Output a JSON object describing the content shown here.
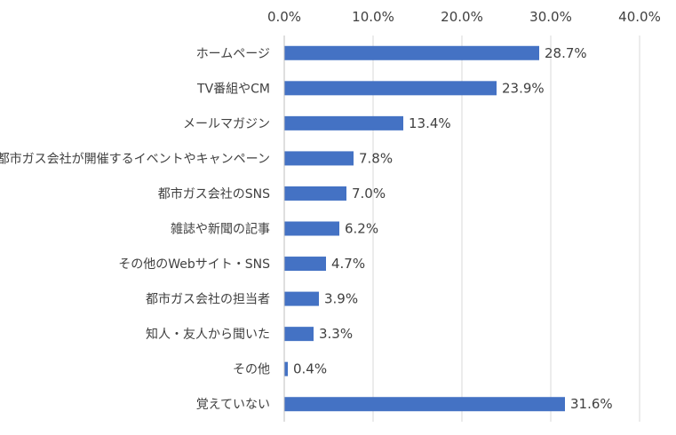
{
  "chart_data": {
    "type": "bar",
    "orientation": "horizontal",
    "categories": [
      "ホームページ",
      "TV番組やCM",
      "メールマガジン",
      "都市ガス会社が開催するイベントやキャンペーン",
      "都市ガス会社のSNS",
      "雑誌や新聞の記事",
      "その他のWebサイト・SNS",
      "都市ガス会社の担当者",
      "知人・友人から聞いた",
      "その他",
      "覚えていない"
    ],
    "values": [
      28.7,
      23.9,
      13.4,
      7.8,
      7.0,
      6.2,
      4.7,
      3.9,
      3.3,
      0.4,
      31.6
    ],
    "value_labels": [
      "28.7%",
      "23.9%",
      "13.4%",
      "7.8%",
      "7.0%",
      "6.2%",
      "4.7%",
      "3.9%",
      "3.3%",
      "0.4%",
      "31.6%"
    ],
    "xlim": [
      0,
      40
    ],
    "xticks": [
      0,
      10,
      20,
      30,
      40
    ],
    "xtick_labels": [
      "0.0%",
      "10.0%",
      "20.0%",
      "30.0%",
      "40.0%"
    ],
    "x_axis_position": "top",
    "grid": true,
    "bar_color": "#4472c4"
  }
}
